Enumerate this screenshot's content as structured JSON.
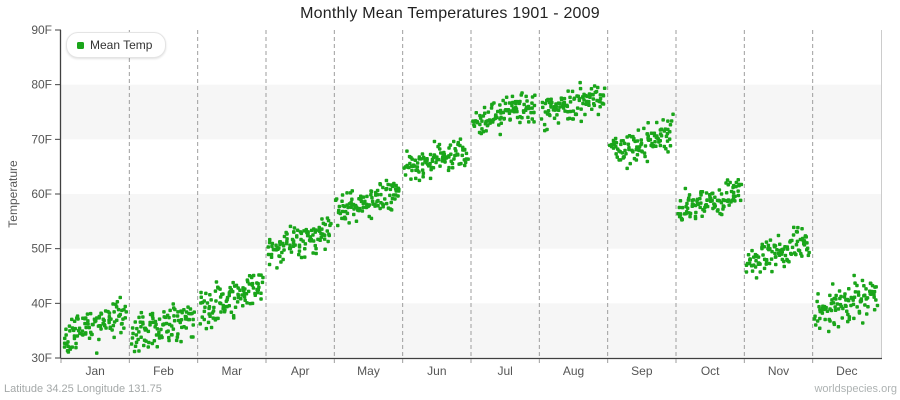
{
  "footer": {
    "left": "Latitude 34.25 Longitude 131.75",
    "right": "worldspecies.org"
  },
  "colors": {
    "marker": "#1aa51a",
    "band_gray": "#f6f6f6",
    "grid_dash": "#9e9e9e",
    "axis_line": "#404040",
    "plot_right_border": "#cccccc",
    "tick_text": "#555555",
    "title_text": "#222222",
    "footer_text": "#a4a8a8"
  },
  "chart_data": {
    "type": "scatter",
    "title": "Monthly Mean Temperatures 1901 - 2009",
    "xlabel": "",
    "ylabel": "Temperature",
    "categories": [
      "Jan",
      "Feb",
      "Mar",
      "Apr",
      "May",
      "Jun",
      "Jul",
      "Aug",
      "Sep",
      "Oct",
      "Nov",
      "Dec"
    ],
    "ylim": [
      30,
      90
    ],
    "ytick_step": 10,
    "ytick_labels": [
      "30F",
      "40F",
      "50F",
      "60F",
      "70F",
      "80F",
      "90F"
    ],
    "gray_bands_f": [
      [
        30,
        40
      ],
      [
        50,
        60
      ],
      [
        70,
        80
      ]
    ],
    "grid": "vertical-dashed-at-month-boundaries",
    "legend_position": "top-left",
    "year_range": [
      1901,
      2009
    ],
    "points_per_month": 109,
    "series": [
      {
        "name": "Mean Temp",
        "color": "#1aa51a",
        "marker": "small-green-square",
        "monthly_stats_f": [
          {
            "month": "Jan",
            "mean": 35.8,
            "sd": 1.6,
            "min": 30.3,
            "max": 41.5,
            "trend_per_century": 4.0
          },
          {
            "month": "Feb",
            "mean": 35.9,
            "sd": 1.9,
            "min": 30.0,
            "max": 43.0,
            "trend_per_century": 4.0
          },
          {
            "month": "Mar",
            "mean": 41.2,
            "sd": 1.8,
            "min": 34.8,
            "max": 46.5,
            "trend_per_century": 4.5
          },
          {
            "month": "Apr",
            "mean": 51.3,
            "sd": 1.5,
            "min": 46.5,
            "max": 57.5,
            "trend_per_century": 4.0
          },
          {
            "month": "May",
            "mean": 58.4,
            "sd": 1.4,
            "min": 53.5,
            "max": 62.5,
            "trend_per_century": 3.5
          },
          {
            "month": "Jun",
            "mean": 66.3,
            "sd": 1.3,
            "min": 62.5,
            "max": 71.0,
            "trend_per_century": 3.5
          },
          {
            "month": "Jul",
            "mean": 75.0,
            "sd": 1.5,
            "min": 70.5,
            "max": 80.0,
            "trend_per_century": 3.5
          },
          {
            "month": "Aug",
            "mean": 76.4,
            "sd": 1.5,
            "min": 71.5,
            "max": 81.2,
            "trend_per_century": 3.5
          },
          {
            "month": "Sep",
            "mean": 69.3,
            "sd": 1.6,
            "min": 64.7,
            "max": 75.4,
            "trend_per_century": 4.0
          },
          {
            "month": "Oct",
            "mean": 58.8,
            "sd": 1.5,
            "min": 54.8,
            "max": 64.0,
            "trend_per_century": 4.0
          },
          {
            "month": "Nov",
            "mean": 49.2,
            "sd": 1.6,
            "min": 44.0,
            "max": 54.2,
            "trend_per_century": 4.0
          },
          {
            "month": "Dec",
            "mean": 40.0,
            "sd": 1.9,
            "min": 33.0,
            "max": 46.3,
            "trend_per_century": 4.5
          }
        ]
      }
    ]
  }
}
